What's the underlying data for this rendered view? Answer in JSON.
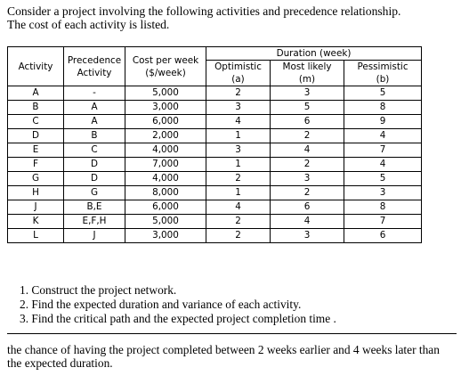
{
  "intro": {
    "line1": "Consider a project involving the following activities and precedence relationship.",
    "line2": "The cost of each activity is listed."
  },
  "table": {
    "headers": {
      "activity": "Activity",
      "precedence_line1": "Precedence",
      "precedence_line2": "Activity",
      "cost_line1": "Cost per week",
      "cost_line2": "($/week)",
      "duration": "Duration (week)",
      "optimistic": "Optimistic",
      "optimistic_sym": "(a)",
      "most_likely": "Most likely",
      "most_likely_sym": "(m)",
      "pessimistic": "Pessimistic",
      "pessimistic_sym": "(b)"
    },
    "rows": [
      {
        "activity": "A",
        "precedence": "-",
        "cost": "5,000",
        "a": "2",
        "m": "3",
        "b": "5"
      },
      {
        "activity": "B",
        "precedence": "A",
        "cost": "3,000",
        "a": "3",
        "m": "5",
        "b": "8"
      },
      {
        "activity": "C",
        "precedence": "A",
        "cost": "6,000",
        "a": "4",
        "m": "6",
        "b": "9"
      },
      {
        "activity": "D",
        "precedence": "B",
        "cost": "2,000",
        "a": "1",
        "m": "2",
        "b": "4"
      },
      {
        "activity": "E",
        "precedence": "C",
        "cost": "4,000",
        "a": "3",
        "m": "4",
        "b": "7"
      },
      {
        "activity": "F",
        "precedence": "D",
        "cost": "7,000",
        "a": "1",
        "m": "2",
        "b": "4"
      },
      {
        "activity": "G",
        "precedence": "D",
        "cost": "4,000",
        "a": "2",
        "m": "3",
        "b": "5"
      },
      {
        "activity": "H",
        "precedence": "G",
        "cost": "8,000",
        "a": "1",
        "m": "2",
        "b": "3"
      },
      {
        "activity": "J",
        "precedence": "B,E",
        "cost": "6,000",
        "a": "4",
        "m": "6",
        "b": "8"
      },
      {
        "activity": "K",
        "precedence": "E,F,H",
        "cost": "5,000",
        "a": "2",
        "m": "4",
        "b": "7"
      },
      {
        "activity": "L",
        "precedence": "J",
        "cost": "3,000",
        "a": "2",
        "m": "3",
        "b": "6"
      }
    ]
  },
  "tasks": [
    "1. Construct the project network.",
    "2. Find the expected duration and variance of each activity.",
    "3. Find the critical path and the expected project completion time ."
  ],
  "closing": "the chance of having the project completed between 2 weeks earlier and 4 weeks later than the expected duration."
}
